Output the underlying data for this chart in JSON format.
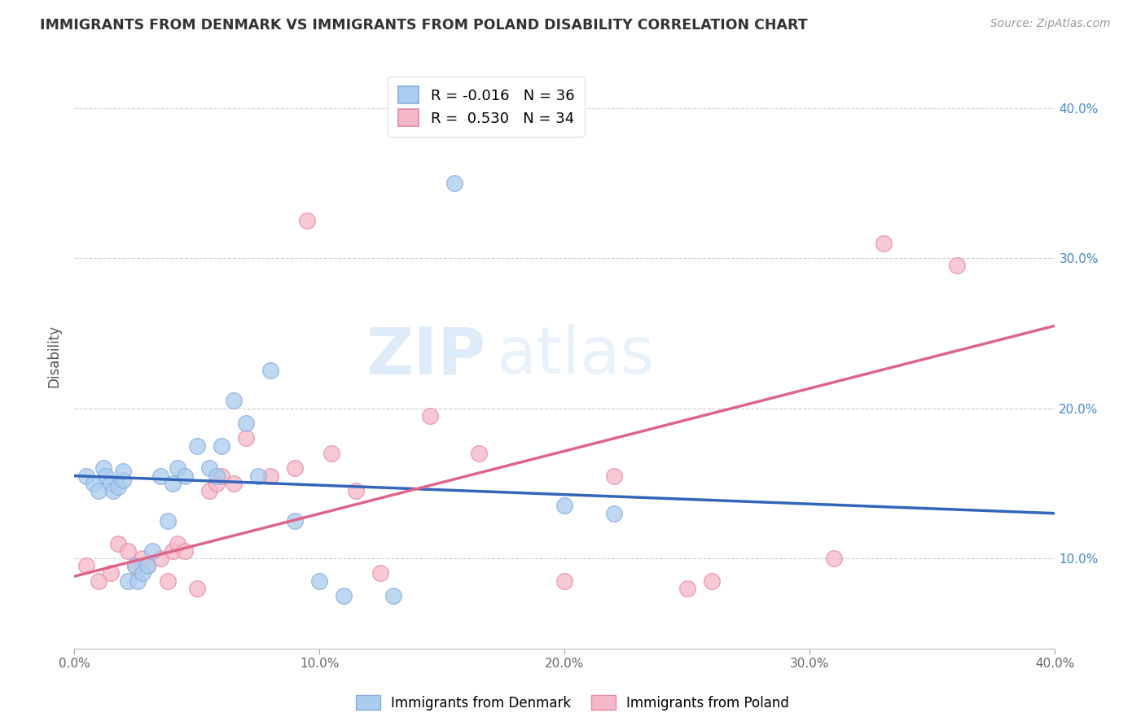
{
  "title": "IMMIGRANTS FROM DENMARK VS IMMIGRANTS FROM POLAND DISABILITY CORRELATION CHART",
  "source": "Source: ZipAtlas.com",
  "ylabel": "Disability",
  "xlim": [
    0.0,
    0.4
  ],
  "ylim": [
    0.04,
    0.43
  ],
  "xticks": [
    0.0,
    0.1,
    0.2,
    0.3,
    0.4
  ],
  "xtick_labels": [
    "0.0%",
    "10.0%",
    "20.0%",
    "30.0%",
    "40.0%"
  ],
  "yticks": [
    0.1,
    0.2,
    0.3,
    0.4
  ],
  "ytick_labels": [
    "10.0%",
    "20.0%",
    "30.0%",
    "40.0%"
  ],
  "denmark_color": "#aaccee",
  "denmark_edge": "#88aadd",
  "poland_color": "#f5b8c8",
  "poland_edge": "#e888a8",
  "denmark_R": -0.016,
  "denmark_N": 36,
  "poland_R": 0.53,
  "poland_N": 34,
  "legend_entries": [
    "Immigrants from Denmark",
    "Immigrants from Poland"
  ],
  "background_color": "#ffffff",
  "watermark": "ZIPatlas",
  "denmark_scatter_x": [
    0.005,
    0.008,
    0.01,
    0.012,
    0.013,
    0.015,
    0.016,
    0.018,
    0.02,
    0.02,
    0.022,
    0.025,
    0.026,
    0.028,
    0.03,
    0.032,
    0.035,
    0.038,
    0.04,
    0.042,
    0.045,
    0.05,
    0.055,
    0.058,
    0.06,
    0.065,
    0.07,
    0.075,
    0.08,
    0.09,
    0.1,
    0.11,
    0.13,
    0.155,
    0.2,
    0.22
  ],
  "denmark_scatter_y": [
    0.155,
    0.15,
    0.145,
    0.16,
    0.155,
    0.15,
    0.145,
    0.148,
    0.152,
    0.158,
    0.085,
    0.095,
    0.085,
    0.09,
    0.095,
    0.105,
    0.155,
    0.125,
    0.15,
    0.16,
    0.155,
    0.175,
    0.16,
    0.155,
    0.175,
    0.205,
    0.19,
    0.155,
    0.225,
    0.125,
    0.085,
    0.075,
    0.075,
    0.35,
    0.135,
    0.13
  ],
  "poland_scatter_x": [
    0.005,
    0.01,
    0.015,
    0.018,
    0.022,
    0.025,
    0.028,
    0.03,
    0.035,
    0.038,
    0.04,
    0.042,
    0.045,
    0.05,
    0.055,
    0.058,
    0.06,
    0.065,
    0.07,
    0.08,
    0.09,
    0.095,
    0.105,
    0.115,
    0.125,
    0.145,
    0.165,
    0.2,
    0.22,
    0.25,
    0.26,
    0.31,
    0.33,
    0.36
  ],
  "poland_scatter_y": [
    0.095,
    0.085,
    0.09,
    0.11,
    0.105,
    0.095,
    0.1,
    0.095,
    0.1,
    0.085,
    0.105,
    0.11,
    0.105,
    0.08,
    0.145,
    0.15,
    0.155,
    0.15,
    0.18,
    0.155,
    0.16,
    0.325,
    0.17,
    0.145,
    0.09,
    0.195,
    0.17,
    0.085,
    0.155,
    0.08,
    0.085,
    0.1,
    0.31,
    0.295
  ],
  "dk_trend_x0": 0.0,
  "dk_trend_y0": 0.155,
  "dk_trend_x1": 0.4,
  "dk_trend_y1": 0.13,
  "pl_trend_x0": 0.0,
  "pl_trend_y0": 0.088,
  "pl_trend_x1": 0.4,
  "pl_trend_y1": 0.255
}
